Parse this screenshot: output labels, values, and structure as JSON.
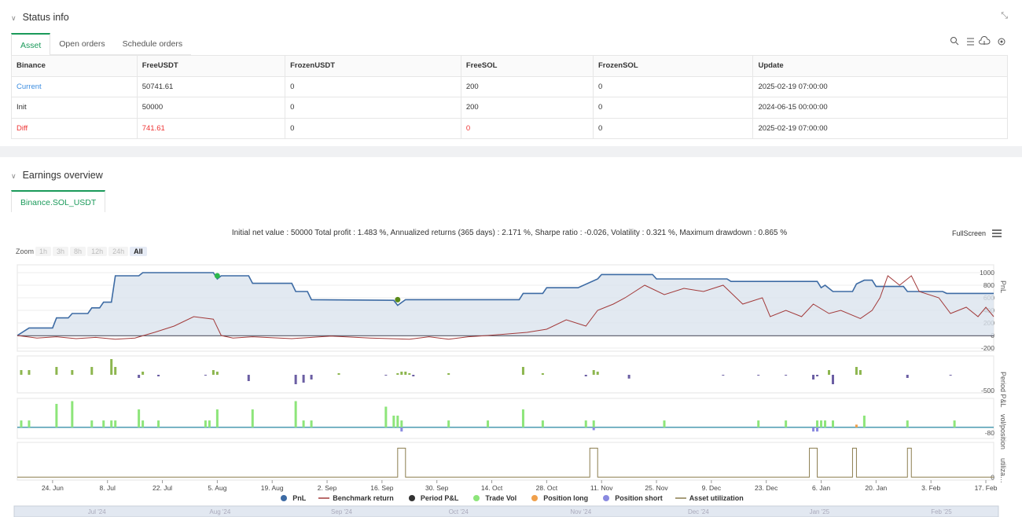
{
  "status": {
    "title": "Status info",
    "tabs": [
      "Asset",
      "Open orders",
      "Schedule orders"
    ],
    "table": {
      "headers": [
        "Binance",
        "FreeUSDT",
        "FrozenUSDT",
        "FreeSOL",
        "FrozenSOL",
        "Update"
      ],
      "rows": [
        [
          "Current",
          "50741.61",
          "0",
          "200",
          "0",
          "2025-02-19 07:00:00"
        ],
        [
          "Init",
          "50000",
          "0",
          "200",
          "0",
          "2024-06-15 00:00:00"
        ],
        [
          "Diff",
          "741.61",
          "0",
          "0",
          "0",
          "2025-02-19 07:00:00"
        ]
      ]
    }
  },
  "earnings": {
    "title": "Earnings overview",
    "tab": "Binance.SOL_USDT",
    "fullscreen": "FullScreen",
    "zoom": "Zoom",
    "zoom_buttons": [
      "1h",
      "3h",
      "8h",
      "12h",
      "24h",
      "All"
    ]
  },
  "chart_data": {
    "type": "line",
    "summary": "Initial net value : 50000 Total profit : 1.483 %, Annualized returns (365 days) : 2.171 %, Sharpe ratio : -0.026, Volatility : 0.321 %, Maximum drawdown : 0.865 %",
    "xlim": [
      0,
      249
    ],
    "xticks": [
      {
        "value": 9,
        "label": "24. Jun"
      },
      {
        "value": 23,
        "label": "8. Jul"
      },
      {
        "value": 37,
        "label": "22. Jul"
      },
      {
        "value": 51,
        "label": "5. Aug"
      },
      {
        "value": 65,
        "label": "19. Aug"
      },
      {
        "value": 79,
        "label": "2. Sep"
      },
      {
        "value": 93,
        "label": "16. Sep"
      },
      {
        "value": 107,
        "label": "30. Sep"
      },
      {
        "value": 121,
        "label": "14. Oct"
      },
      {
        "value": 135,
        "label": "28. Oct"
      },
      {
        "value": 149,
        "label": "11. Nov"
      },
      {
        "value": 163,
        "label": "25. Nov"
      },
      {
        "value": 177,
        "label": "9. Dec"
      },
      {
        "value": 191,
        "label": "23. Dec"
      },
      {
        "value": 205,
        "label": "6. Jan"
      },
      {
        "value": 219,
        "label": "20. Jan"
      },
      {
        "value": 233,
        "label": "3. Feb"
      },
      {
        "value": 247,
        "label": "17. Feb"
      }
    ],
    "panes": [
      {
        "label": "PnL",
        "ylim": [
          -250,
          1125
        ],
        "yticks": [
          -200,
          0,
          200,
          400,
          600,
          800,
          1000
        ]
      },
      {
        "label": "Period P&L",
        "ylim": [
          -575,
          600
        ],
        "yticks": [
          -500
        ]
      },
      {
        "label": "vol/position",
        "ylim": [
          -160,
          420
        ],
        "yticks": [
          -80
        ]
      },
      {
        "label": "utiliza…",
        "ylim": [
          -0.1,
          1.2
        ],
        "yticks": [
          0
        ]
      }
    ],
    "series": [
      {
        "name": "PnL",
        "color": "#3d6ba4",
        "pane": 0,
        "type": "line",
        "area": true,
        "legend_symbol": "circle",
        "x": [
          0,
          3,
          9,
          10,
          13,
          14,
          18,
          19,
          21,
          22,
          24,
          25,
          31,
          32,
          50,
          51,
          52,
          59,
          60,
          70,
          71,
          74,
          75,
          96,
          97,
          99,
          128,
          129,
          134,
          135,
          143,
          148,
          149,
          162,
          163,
          181,
          182,
          204,
          205,
          206,
          208,
          213,
          214,
          216,
          218,
          219,
          226,
          227,
          236,
          237,
          249
        ],
        "values": [
          0,
          120,
          120,
          280,
          280,
          350,
          350,
          440,
          440,
          530,
          530,
          950,
          950,
          1000,
          1000,
          900,
          950,
          950,
          830,
          830,
          700,
          700,
          570,
          560,
          480,
          570,
          570,
          670,
          670,
          760,
          760,
          900,
          970,
          970,
          900,
          900,
          860,
          860,
          760,
          800,
          700,
          700,
          820,
          880,
          880,
          780,
          780,
          700,
          700,
          670,
          670
        ]
      },
      {
        "name": "Benchmark return",
        "color": "#a23a3a",
        "pane": 0,
        "type": "line",
        "legend_symbol": "line",
        "x": [
          0,
          5,
          10,
          15,
          20,
          25,
          30,
          35,
          40,
          45,
          50,
          52,
          55,
          60,
          70,
          80,
          90,
          100,
          105,
          110,
          115,
          120,
          130,
          135,
          140,
          145,
          148,
          152,
          155,
          160,
          165,
          170,
          175,
          180,
          185,
          190,
          192,
          196,
          200,
          203,
          207,
          210,
          215,
          218,
          220,
          222,
          225,
          228,
          230,
          235,
          238,
          242,
          245,
          247,
          249
        ],
        "values": [
          0,
          -40,
          -20,
          -50,
          -30,
          -60,
          -40,
          50,
          150,
          300,
          260,
          0,
          -40,
          -20,
          -50,
          -10,
          -40,
          -60,
          -20,
          -60,
          -20,
          0,
          50,
          100,
          250,
          150,
          400,
          500,
          600,
          800,
          650,
          750,
          700,
          800,
          500,
          600,
          300,
          400,
          300,
          500,
          350,
          400,
          270,
          400,
          600,
          950,
          800,
          950,
          700,
          600,
          350,
          450,
          300,
          450,
          300
        ]
      },
      {
        "name": "Period P&L",
        "color": "#333333",
        "pane": 1,
        "type": "bar",
        "legend_symbol": "circle",
        "positive_color": "#8db64f",
        "negative_color": "#6b5ea3",
        "x": [
          1,
          3,
          10,
          14,
          19,
          24,
          25,
          31,
          32,
          36,
          48,
          50,
          51,
          59,
          71,
          73,
          75,
          82,
          94,
          97,
          98,
          99,
          100,
          101,
          110,
          129,
          134,
          145,
          147,
          148,
          156,
          180,
          189,
          196,
          203,
          204,
          207,
          208,
          214,
          215,
          227,
          238
        ],
        "values": [
          150,
          150,
          250,
          150,
          250,
          500,
          250,
          -100,
          100,
          -50,
          -25,
          150,
          100,
          -200,
          -300,
          -250,
          -150,
          50,
          -25,
          50,
          100,
          100,
          50,
          -50,
          50,
          250,
          50,
          -50,
          150,
          100,
          -120,
          -25,
          -25,
          -25,
          -150,
          -50,
          150,
          -300,
          250,
          150,
          -100,
          -25
        ]
      },
      {
        "name": "Trade Vol",
        "color": "#8de57a",
        "pane": 2,
        "type": "bar",
        "legend_symbol": "circle",
        "x": [
          1,
          3,
          10,
          14,
          19,
          22,
          24,
          25,
          31,
          32,
          36,
          48,
          49,
          51,
          60,
          71,
          73,
          75,
          94,
          96,
          97,
          98,
          110,
          120,
          129,
          134,
          145,
          147,
          165,
          189,
          196,
          204,
          205,
          206,
          208,
          216,
          227,
          239
        ],
        "values": [
          100,
          100,
          340,
          380,
          100,
          100,
          100,
          100,
          260,
          100,
          100,
          100,
          100,
          260,
          260,
          380,
          100,
          100,
          300,
          170,
          170,
          100,
          100,
          100,
          260,
          100,
          100,
          100,
          100,
          100,
          100,
          100,
          100,
          100,
          100,
          170,
          100,
          100
        ]
      },
      {
        "name": "Position long",
        "color": "#f0a04b",
        "pane": 2,
        "type": "bar",
        "legend_symbol": "circle",
        "x": [
          214
        ],
        "values": [
          40
        ]
      },
      {
        "name": "Position short",
        "color": "#8a8ae0",
        "pane": 2,
        "type": "bar",
        "legend_symbol": "circle",
        "x": [
          98,
          147,
          203,
          204
        ],
        "values": [
          -60,
          -40,
          -60,
          -60
        ]
      },
      {
        "name": "Asset utilization",
        "color": "#8b7d4f",
        "pane": 3,
        "type": "line",
        "legend_symbol": "line",
        "x": [
          0,
          97,
          97,
          99,
          99,
          146,
          146,
          148,
          148,
          202,
          202,
          204,
          204,
          213,
          213,
          214,
          214,
          227,
          227,
          228,
          228,
          249
        ],
        "values": [
          0,
          0,
          1,
          1,
          0,
          0,
          1,
          1,
          0,
          0,
          1,
          1,
          0,
          0,
          1,
          1,
          0,
          0,
          1,
          1,
          0,
          0
        ]
      }
    ],
    "trade_points": {
      "x": [
        51,
        97
      ],
      "values": [
        950,
        570
      ],
      "colors": [
        "#2db84d",
        "#5a8a1a"
      ]
    },
    "navigator": [
      {
        "value": 16,
        "label": "Jul '24"
      },
      {
        "value": 47,
        "label": "Aug '24"
      },
      {
        "value": 78,
        "label": "Sep '24"
      },
      {
        "value": 108,
        "label": "Oct '24"
      },
      {
        "value": 139,
        "label": "Nov '24"
      },
      {
        "value": 169,
        "label": "Dec '24"
      },
      {
        "value": 200,
        "label": "Jan '25"
      },
      {
        "value": 231,
        "label": "Feb '25"
      }
    ]
  }
}
